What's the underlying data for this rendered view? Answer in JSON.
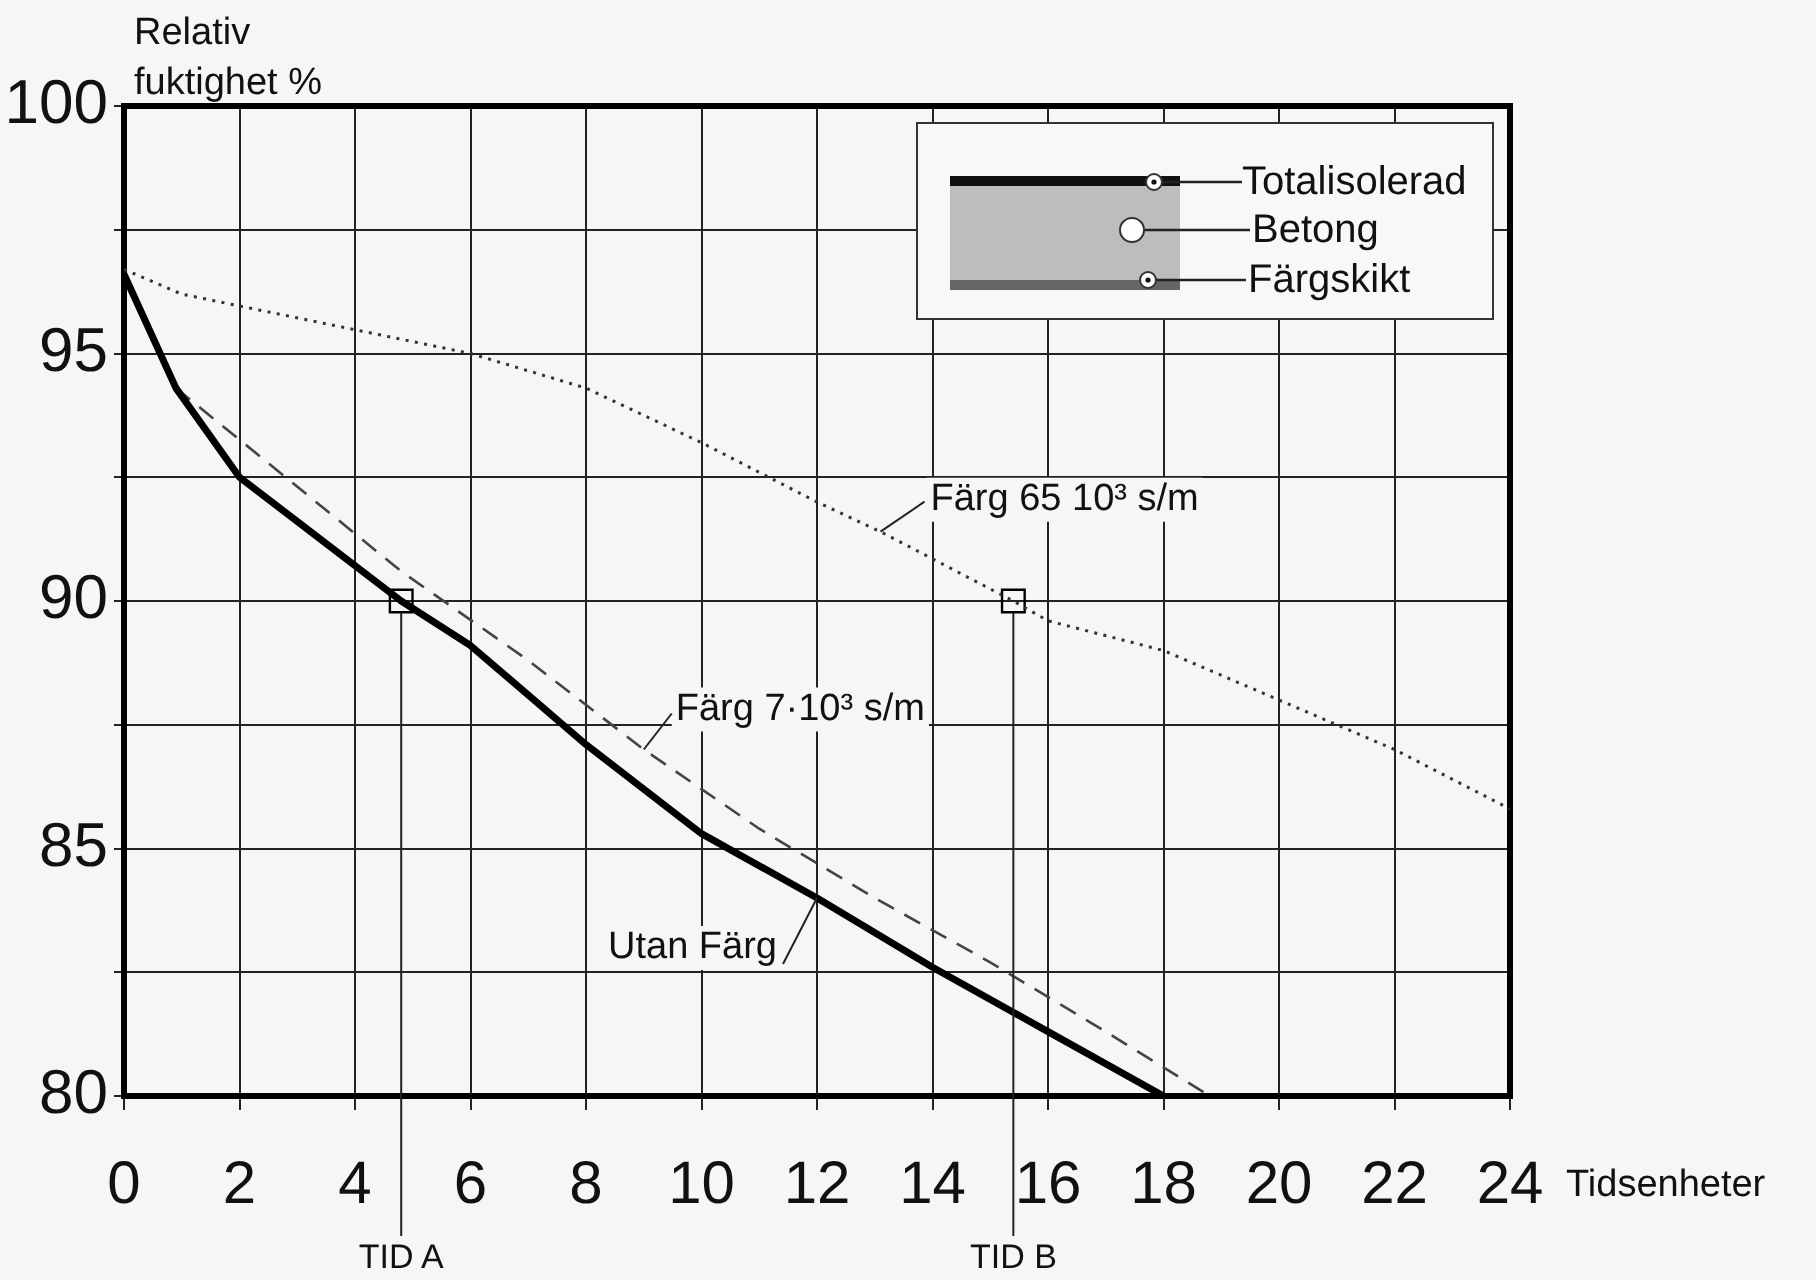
{
  "chart_data": {
    "type": "line",
    "xlabel": "Tidsenheter",
    "ylabel": "Relativ fuktighet %",
    "xlim": [
      0,
      24
    ],
    "xticks": [
      0,
      2,
      4,
      6,
      8,
      10,
      12,
      14,
      16,
      18,
      20,
      22,
      24
    ],
    "ylim": [
      80,
      100
    ],
    "yticks": [
      80,
      {
        "value": 82.5,
        "label": null
      },
      85,
      {
        "value": 87.5,
        "label": null
      },
      90,
      {
        "value": 92.5,
        "label": null
      },
      95,
      {
        "value": 97.5,
        "label": null
      },
      100
    ],
    "grid": true,
    "series": [
      {
        "name": "Utan Färg",
        "color": "#000000",
        "line_style": "solid",
        "x": [
          0,
          0.9,
          2,
          4.8,
          6,
          8,
          10,
          12,
          14,
          16,
          18
        ],
        "values": [
          96.6,
          94.3,
          92.5,
          90,
          89.1,
          87.1,
          85.3,
          84.0,
          82.6,
          81.3,
          80
        ]
      },
      {
        "name": "Färg 7·10³ s/m",
        "color": "#444444",
        "line_style": "dashed",
        "x": [
          0.9,
          2.8,
          4.8,
          7,
          9,
          11,
          13,
          15,
          17,
          18.8
        ],
        "values": [
          94.3,
          92.5,
          90.6,
          88.8,
          87.0,
          85.4,
          84.0,
          82.7,
          81.3,
          80
        ]
      },
      {
        "name": "Färg 65 10³ s/m",
        "color": "#333333",
        "line_style": "dotted",
        "x": [
          0,
          1,
          6,
          8,
          10,
          12,
          13.1,
          15.4,
          16,
          18,
          20,
          22,
          24
        ],
        "values": [
          96.7,
          96.2,
          95.0,
          94.3,
          93.2,
          92.0,
          91.4,
          90.0,
          89.6,
          89.0,
          88.0,
          87.0,
          85.8
        ]
      },
      {
        "type": "scatter",
        "color": "#000000",
        "marker": "square",
        "x": [
          4.8,
          15.4
        ],
        "values": [
          90,
          90
        ]
      }
    ],
    "annotations": [
      "Totalisolerad",
      "Betong",
      "Färgskikt",
      {
        "text": "TID A",
        "x": 4.8,
        "y": 90
      },
      {
        "text": "TID B",
        "x": 15.4,
        "y": 90
      }
    ]
  }
}
